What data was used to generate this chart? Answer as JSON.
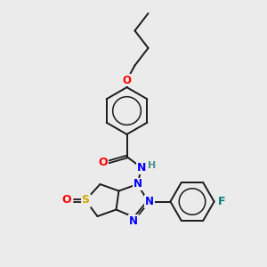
{
  "background_color": "#ebebeb",
  "bond_color": "#1a1a1a",
  "atom_colors": {
    "O": "#ff0000",
    "N": "#0000ff",
    "S": "#ccaa00",
    "F": "#008080",
    "H": "#4a9090",
    "C": "#1a1a1a"
  },
  "figsize": [
    3.0,
    3.0
  ],
  "dpi": 100
}
